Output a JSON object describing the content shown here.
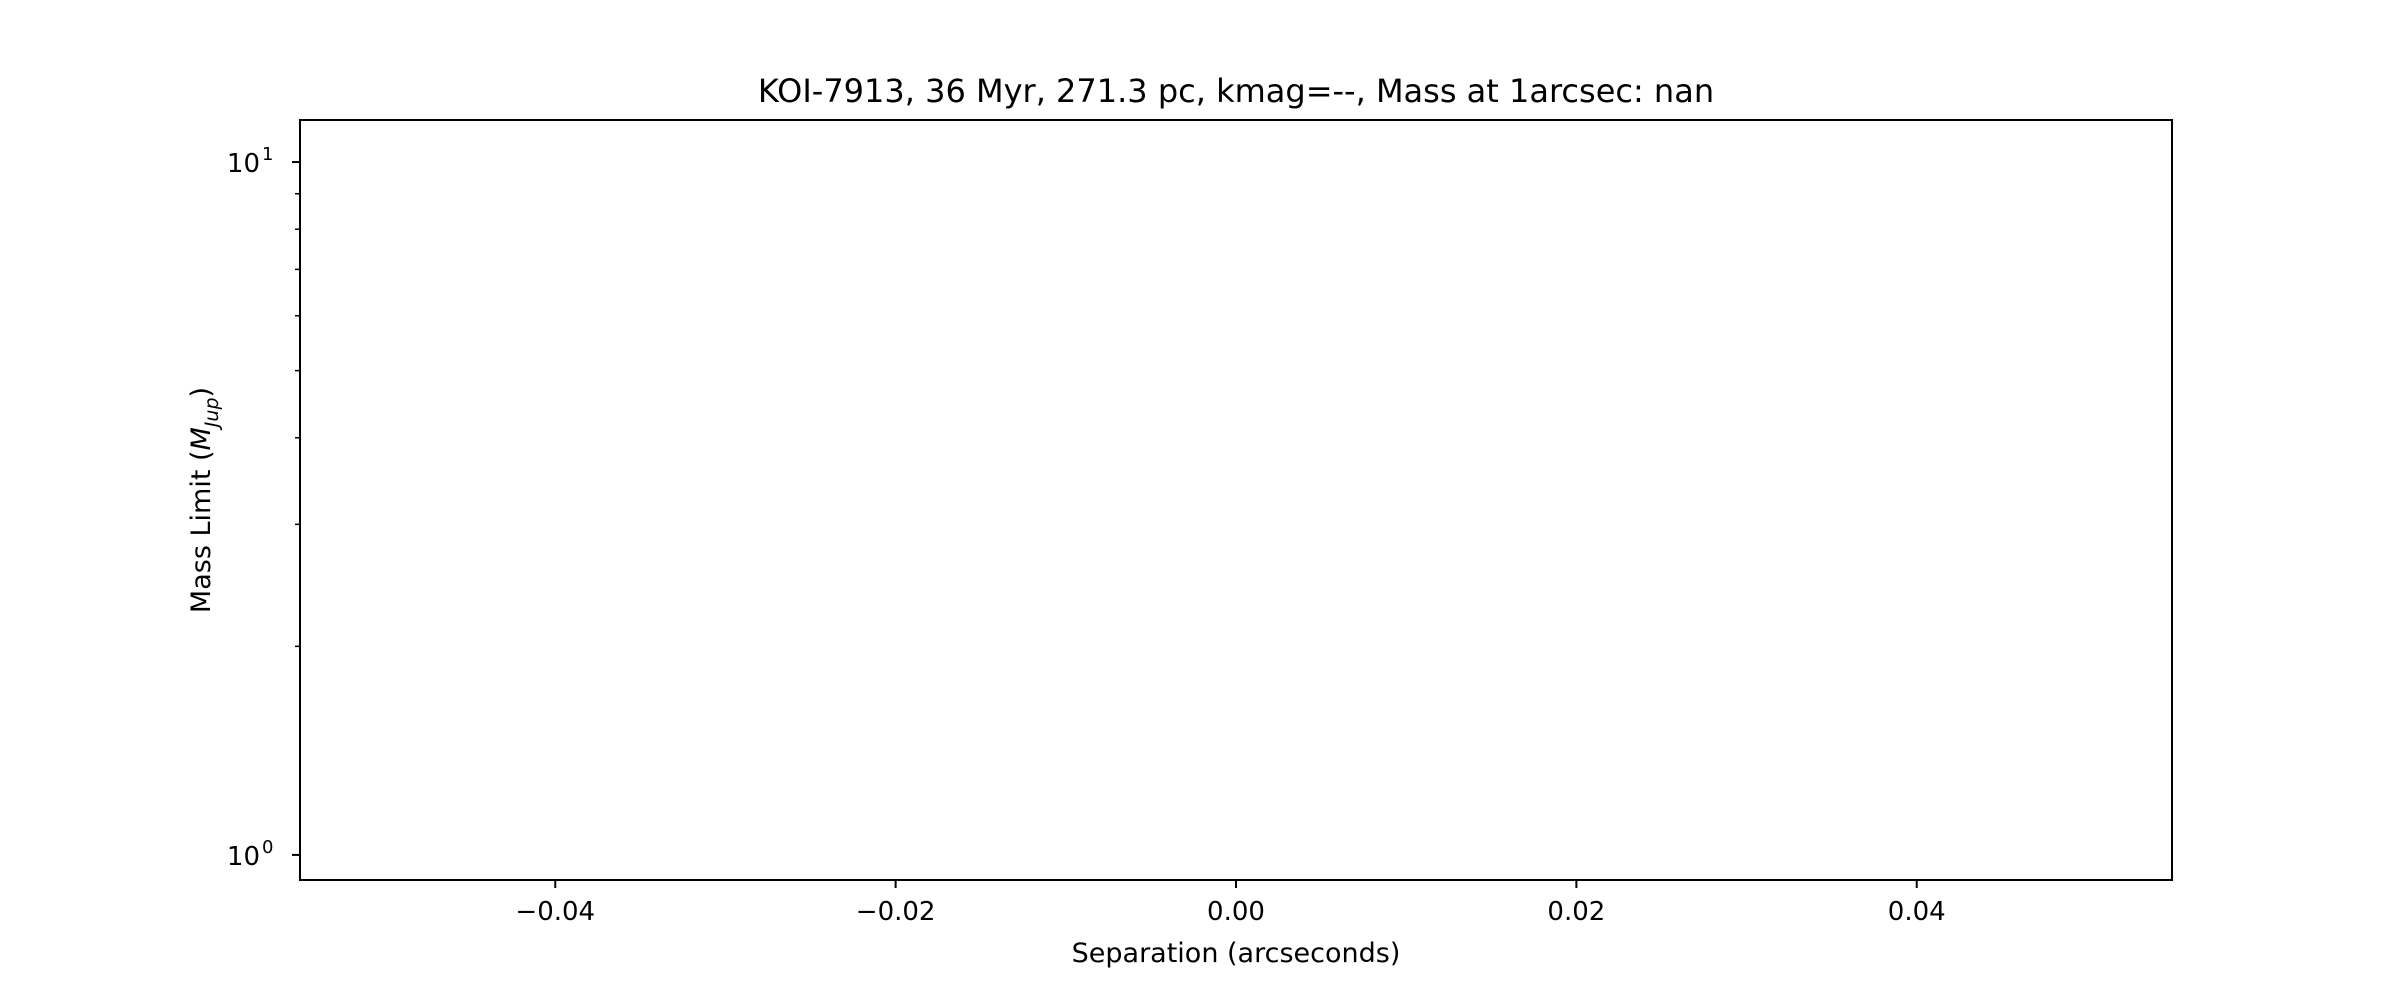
{
  "chart_data": {
    "type": "line",
    "title": "KOI-7913, 36 Myr, 271.3 pc, kmag=--, Mass at 1arcsec: nan",
    "xlabel": "Separation (arcseconds)",
    "ylabel": {
      "prefix": "Mass Limit (",
      "symbol": "M",
      "subscript": "Jup",
      "suffix": ")"
    },
    "xlim": [
      -0.055,
      0.055
    ],
    "ylim": [
      0.92,
      11.5
    ],
    "yscale": "log",
    "x_ticks": [
      -0.04,
      -0.02,
      0.0,
      0.02,
      0.04
    ],
    "x_tick_labels": [
      "−0.04",
      "−0.02",
      "0.00",
      "0.02",
      "0.04"
    ],
    "y_major_ticks": [
      1,
      10
    ],
    "y_major_tick_labels": [
      {
        "base": "10",
        "exp": "0"
      },
      {
        "base": "10",
        "exp": "1"
      }
    ],
    "y_minor_ticks": [
      2,
      3,
      4,
      5,
      6,
      7,
      8,
      9
    ],
    "series": [
      {
        "x": [],
        "y": [],
        "color": "#1f77b4"
      }
    ],
    "grid": false,
    "legend": false
  }
}
